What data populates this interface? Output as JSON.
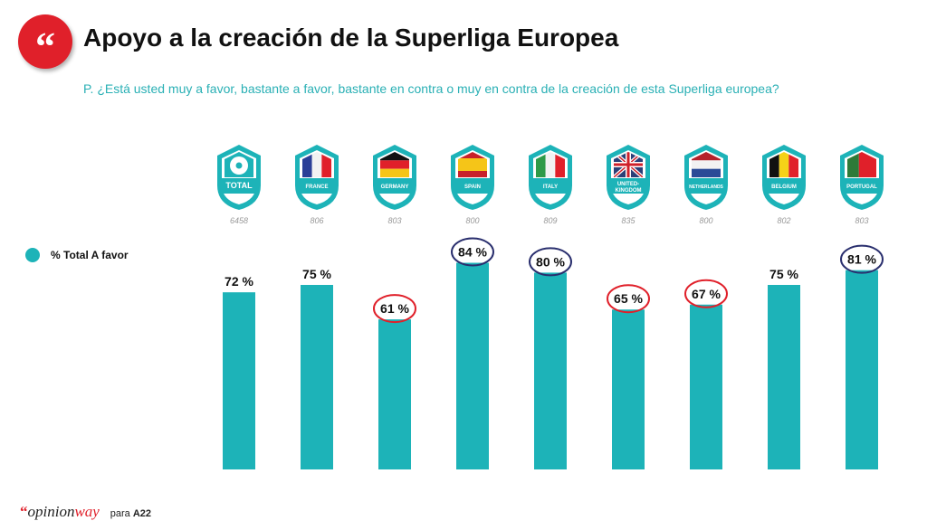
{
  "header": {
    "logo_glyph": "“",
    "title": "Apoyo a la creación de la Superliga Europea",
    "question": "P. ¿Está usted muy a favor, bastante a favor, bastante en contra o muy en contra de la creación de esta Superliga europea?"
  },
  "legend": {
    "label": "% Total A favor",
    "color": "#1db3b8"
  },
  "footer": {
    "brand_prefix": "opinion",
    "brand_suffix": "way",
    "para": "para",
    "client": "A22"
  },
  "chart_data": {
    "type": "bar",
    "categories": [
      "TOTAL",
      "FRANCE",
      "GERMANY",
      "SPAIN",
      "ITALY",
      "UNITED-KINGDOM",
      "NETHERLANDS",
      "BELGIUM",
      "PORTUGAL"
    ],
    "sample_sizes": [
      "6458",
      "806",
      "803",
      "800",
      "809",
      "835",
      "800",
      "802",
      "803"
    ],
    "series": [
      {
        "name": "% Total A favor",
        "values": [
          72,
          75,
          61,
          84,
          80,
          65,
          67,
          75,
          81
        ]
      }
    ],
    "data_labels": [
      "72 %",
      "75 %",
      "61 %",
      "84 %",
      "80 %",
      "65 %",
      "67 %",
      "75 %",
      "81 %"
    ],
    "highlight": [
      "none",
      "none",
      "low",
      "high",
      "high",
      "low",
      "low",
      "none",
      "high"
    ],
    "highlight_colors": {
      "low": "#e0202a",
      "high": "#2a2f6e"
    },
    "bar_color": "#1db3b8",
    "ylim": [
      0,
      100
    ],
    "grid": false
  }
}
